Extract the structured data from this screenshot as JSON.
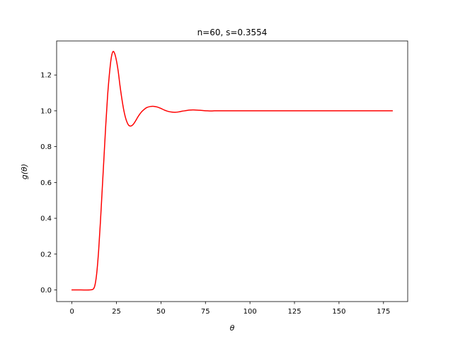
{
  "chart_data": {
    "type": "line",
    "title": "n=60, s=0.3554",
    "xlabel": "θ",
    "ylabel": "g(θ)",
    "xlim": [
      -8.6,
      188.6
    ],
    "ylim": [
      -0.065,
      1.39
    ],
    "grid": false,
    "x_ticks": [
      0,
      25,
      50,
      75,
      100,
      125,
      150,
      175
    ],
    "y_ticks": [
      0.0,
      0.2,
      0.4,
      0.6,
      0.8,
      1.0,
      1.2
    ],
    "x_tick_labels": [
      "0",
      "25",
      "50",
      "75",
      "100",
      "125",
      "150",
      "175"
    ],
    "y_tick_labels": [
      "0.0",
      "0.2",
      "0.4",
      "0.6",
      "0.8",
      "1.0",
      "1.2"
    ],
    "series": [
      {
        "color": "#ff0000",
        "x": [
          0,
          5,
          10,
          12,
          13,
          14,
          15,
          16,
          17,
          18,
          19,
          20,
          21,
          22,
          23,
          24,
          25,
          26,
          27,
          28,
          29,
          30,
          31,
          32,
          33,
          34,
          35,
          36,
          37,
          38,
          39,
          40,
          42,
          44,
          46,
          48,
          50,
          52,
          54,
          56,
          58,
          60,
          62,
          64,
          66,
          68,
          70,
          72,
          74,
          76,
          78,
          80,
          85,
          90,
          100,
          120,
          140,
          160,
          180
        ],
        "y": [
          0.0,
          0.0,
          0.0,
          0.005,
          0.03,
          0.1,
          0.22,
          0.38,
          0.56,
          0.74,
          0.92,
          1.08,
          1.2,
          1.29,
          1.33,
          1.32,
          1.28,
          1.22,
          1.14,
          1.07,
          1.01,
          0.965,
          0.935,
          0.918,
          0.915,
          0.92,
          0.932,
          0.948,
          0.965,
          0.98,
          0.993,
          1.003,
          1.018,
          1.024,
          1.025,
          1.021,
          1.013,
          1.004,
          0.997,
          0.993,
          0.992,
          0.994,
          0.998,
          1.001,
          1.004,
          1.005,
          1.004,
          1.003,
          1.001,
          1.0,
          0.999,
          1.0,
          1.0,
          1.0,
          1.0,
          1.0,
          1.0,
          1.0,
          1.0
        ]
      }
    ]
  }
}
